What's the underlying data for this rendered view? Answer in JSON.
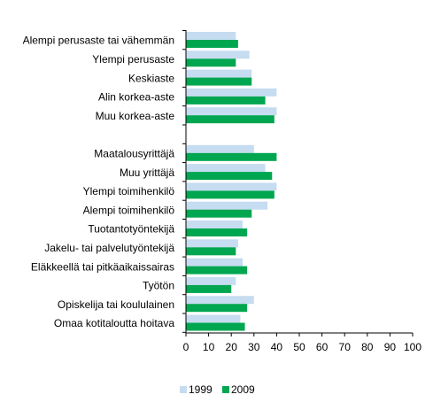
{
  "chart_data": {
    "type": "bar",
    "orientation": "horizontal",
    "categories": [
      "Alempi perusaste tai vähemmän",
      "Ylempi perusaste",
      "Keskiaste",
      "Alin korkea-aste",
      "Muu korkea-aste",
      "",
      "Maatalousyrittäjä",
      "Muu yrittäjä",
      "Ylempi toimihenkilö",
      "Alempi toimihenkilö",
      "Tuotantotyöntekijä",
      "Jakelu- tai palvelutyöntekijä",
      "Eläkkeellä tai pitkäaikaissairas",
      "Työtön",
      "Opiskelija tai koululainen",
      "Omaa kotitaloutta hoitava"
    ],
    "series": [
      {
        "name": "1999",
        "color": "#c6dcf0",
        "values": [
          22,
          28,
          29,
          40,
          40,
          null,
          30,
          35,
          40,
          36,
          25,
          23,
          25,
          22,
          30,
          24
        ]
      },
      {
        "name": "2009",
        "color": "#00a650",
        "values": [
          23,
          22,
          29,
          35,
          39,
          null,
          40,
          38,
          39,
          29,
          27,
          22,
          27,
          20,
          27,
          26
        ]
      }
    ],
    "x_ticks": [
      "0",
      "10",
      "20",
      "30",
      "40",
      "50",
      "60",
      "70",
      "80",
      "90",
      "100"
    ],
    "xlim": [
      0,
      100
    ],
    "grid": false,
    "legend_position": "bottom"
  }
}
